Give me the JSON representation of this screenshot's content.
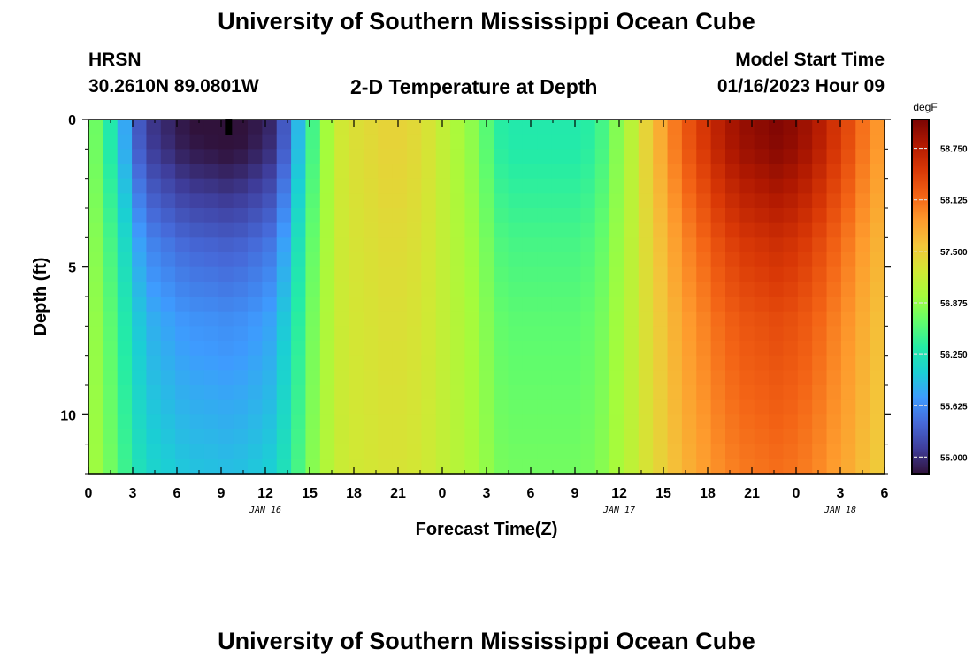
{
  "page": {
    "title": "University of Southern Mississippi Ocean Cube",
    "footer_title": "University of Southern Mississippi Ocean Cube",
    "station": "HRSN",
    "coordinates": "30.2610N  89.0801W",
    "plot_title": "2-D Temperature at Depth",
    "model_start_label": "Model Start Time",
    "model_start_value": "01/16/2023 Hour 09"
  },
  "chart_data": {
    "type": "heatmap",
    "title": "2-D Temperature at Depth",
    "xlabel": "Forecast Time(Z)",
    "ylabel": "Depth (ft)",
    "x_tick_labels": [
      "0",
      "3",
      "6",
      "9",
      "12",
      "15",
      "18",
      "21",
      "0",
      "3",
      "6",
      "9",
      "12",
      "15",
      "18",
      "21",
      "0",
      "3",
      "6"
    ],
    "x_tick_hours": [
      0,
      3,
      6,
      9,
      12,
      15,
      18,
      21,
      24,
      27,
      30,
      33,
      36,
      39,
      42,
      45,
      48,
      51,
      54
    ],
    "date_labels": [
      {
        "text": "JAN 16",
        "hour": 12
      },
      {
        "text": "JAN 17",
        "hour": 36
      },
      {
        "text": "JAN 18",
        "hour": 51
      }
    ],
    "x_range_hours": [
      0,
      54
    ],
    "y_ticks": [
      0,
      5,
      10
    ],
    "y_range_ft": [
      0,
      12
    ],
    "colorbar": {
      "unit": "degF",
      "ticks": [
        "58.750",
        "58.125",
        "57.500",
        "56.875",
        "56.250",
        "55.625",
        "55.000"
      ],
      "tick_values": [
        58.75,
        58.125,
        57.5,
        56.875,
        56.25,
        55.625,
        55.0
      ],
      "range": [
        54.8,
        59.1
      ]
    },
    "colors": [
      "#30123b",
      "#3f3e9c",
      "#4669d8",
      "#3e9bfe",
      "#1bcfd4",
      "#24eca6",
      "#61fc6c",
      "#a4fc3c",
      "#d1e834",
      "#f3c63a",
      "#fe9b2d",
      "#f36315",
      "#d93806",
      "#b11901",
      "#7a0403"
    ],
    "marker": {
      "hour": 9.5,
      "depth_ft": 0.25
    },
    "surface_temps": [
      56.7,
      56.3,
      55.8,
      55.3,
      55.05,
      54.95,
      54.85,
      54.8,
      54.78,
      54.75,
      54.78,
      54.85,
      54.95,
      55.3,
      55.9,
      56.5,
      56.95,
      57.25,
      57.35,
      57.4,
      57.45,
      57.45,
      57.4,
      57.3,
      57.15,
      57.0,
      56.85,
      56.6,
      56.35,
      56.3,
      56.3,
      56.3,
      56.3,
      56.3,
      56.35,
      56.5,
      56.8,
      57.1,
      57.45,
      57.75,
      58.05,
      58.3,
      58.5,
      58.7,
      58.85,
      58.95,
      59.0,
      59.05,
      59.0,
      58.9,
      58.75,
      58.55,
      58.35,
      58.1,
      57.9
    ],
    "depth_anomaly": [
      0.0,
      0.05,
      0.15,
      0.3,
      0.45,
      0.6,
      0.75,
      0.9,
      1.05,
      1.15,
      1.25,
      1.35,
      1.45,
      1.55,
      1.6,
      1.65,
      1.7,
      1.75,
      1.8,
      1.85,
      1.9,
      1.95,
      2.0,
      2.05
    ]
  }
}
